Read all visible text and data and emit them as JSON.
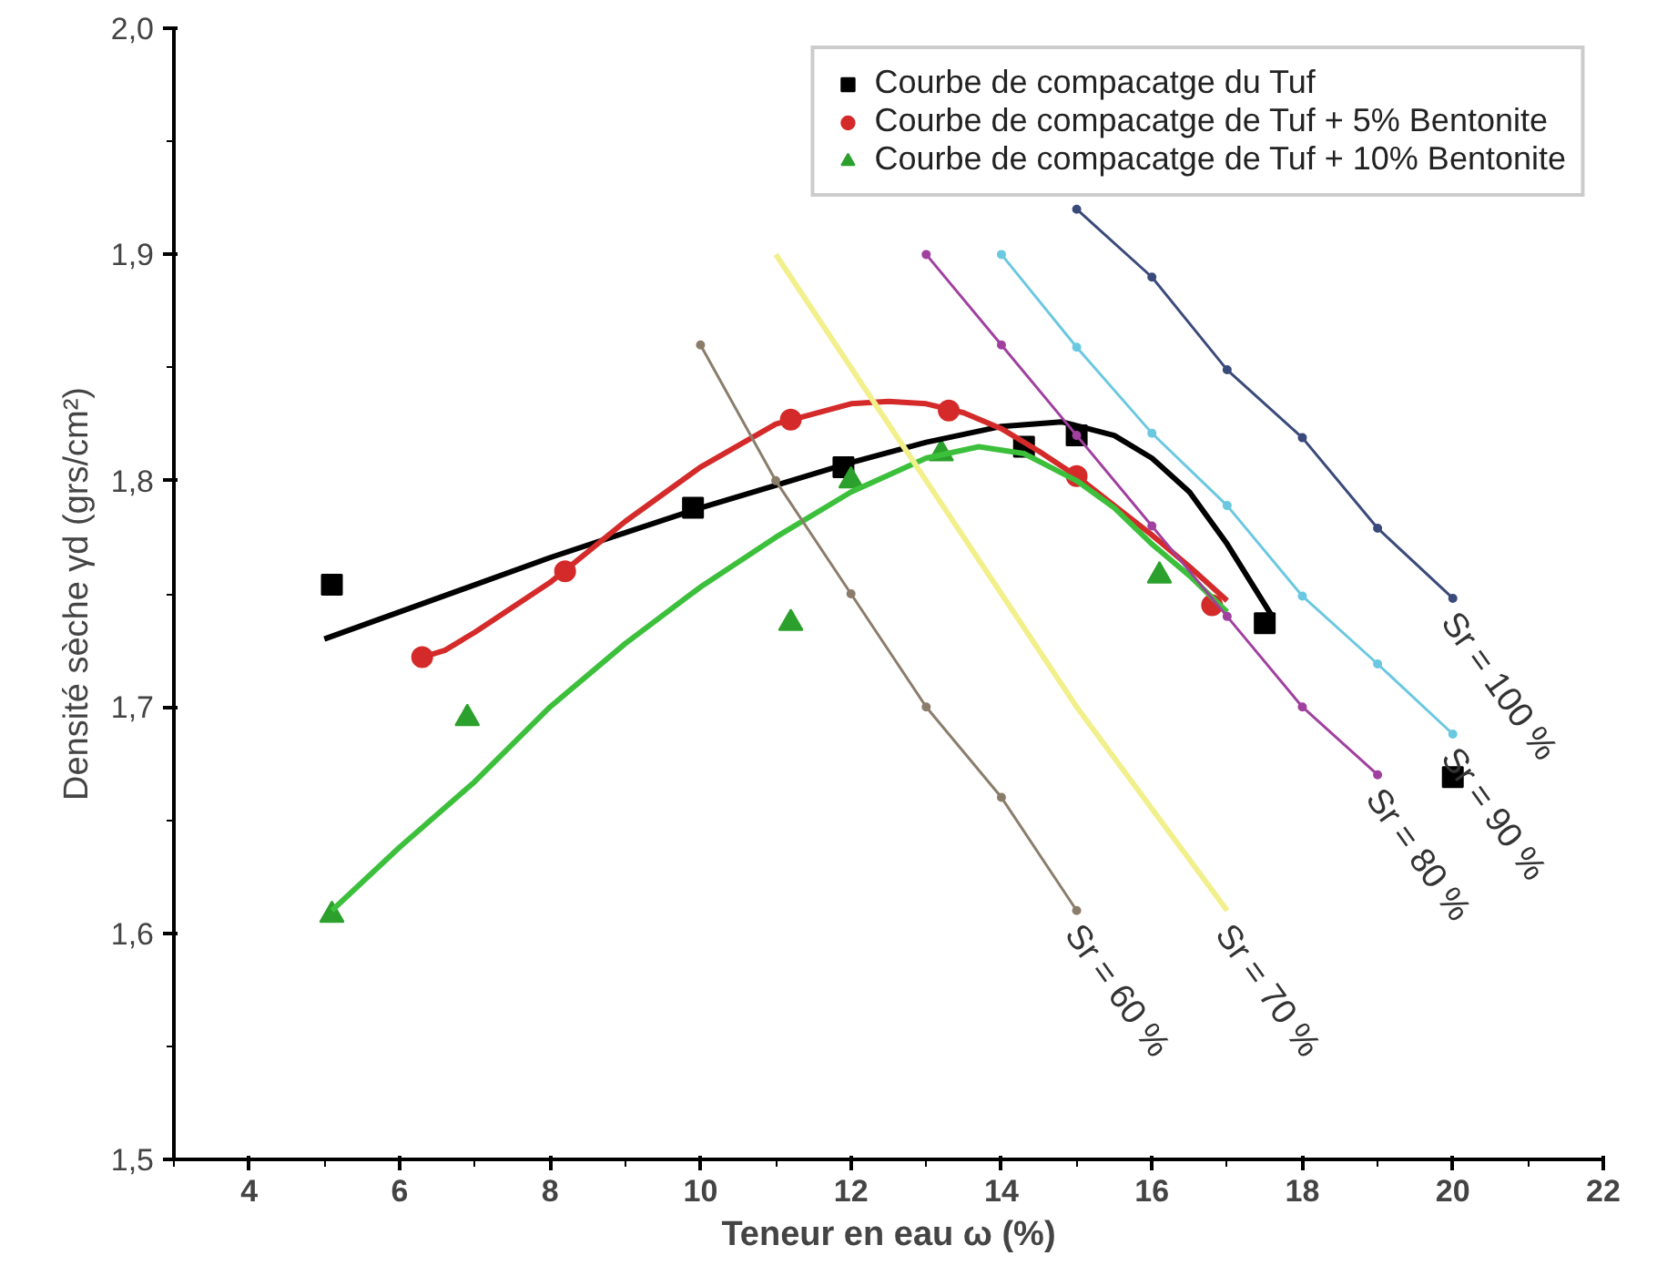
{
  "chart_data": {
    "type": "scatter",
    "xlabel": "Teneur en eau ω (%)",
    "ylabel": "Densité sèche γd (grs/cm²)",
    "xlim": [
      3,
      22
    ],
    "xticks": [
      4,
      6,
      8,
      10,
      12,
      14,
      16,
      18,
      20,
      22
    ],
    "ylim": [
      1.5,
      2.0
    ],
    "yticks": [
      {
        "value": 1.5,
        "label": "1,5"
      },
      {
        "value": 1.6,
        "label": "1,6"
      },
      {
        "value": 1.7,
        "label": "1,7"
      },
      {
        "value": 1.8,
        "label": "1,8"
      },
      {
        "value": 1.9,
        "label": "1,9"
      },
      {
        "value": 2.0,
        "label": "2,0"
      }
    ],
    "grid": false,
    "legend": "top right",
    "series": [
      {
        "name": "Courbe de compacatge du Tuf",
        "marker": "square",
        "color": "#000000",
        "x": [
          5.1,
          9.9,
          11.9,
          14.3,
          15.0,
          17.5,
          20.0
        ],
        "values": [
          1.754,
          1.788,
          1.806,
          1.815,
          1.82,
          1.737,
          1.669
        ]
      },
      {
        "name": "Courbe de compacatge de Tuf + 5% Bentonite",
        "marker": "circle",
        "color": "#d42a2a",
        "x": [
          6.3,
          8.2,
          11.2,
          13.3,
          15.0,
          16.8
        ],
        "values": [
          1.722,
          1.76,
          1.827,
          1.831,
          1.802,
          1.745
        ]
      },
      {
        "name": "Courbe de compacatge de Tuf + 10% Bentonite",
        "marker": "triangle",
        "color": "#2ca02c",
        "x": [
          5.1,
          6.9,
          11.2,
          12.0,
          13.2,
          16.1
        ],
        "values": [
          1.608,
          1.695,
          1.737,
          1.8,
          1.812,
          1.758
        ]
      },
      {
        "type": "line",
        "marker": "none",
        "color": "#000000",
        "x": [
          5,
          6,
          7,
          8,
          9,
          10,
          11,
          12,
          13,
          14,
          14.8,
          15.5,
          16,
          16.5,
          17,
          17.6
        ],
        "values": [
          1.73,
          1.742,
          1.754,
          1.766,
          1.777,
          1.788,
          1.798,
          1.808,
          1.817,
          1.824,
          1.826,
          1.82,
          1.81,
          1.795,
          1.772,
          1.74
        ]
      },
      {
        "type": "line",
        "marker": "none",
        "color": "#d42a2a",
        "x": [
          6.3,
          6.6,
          7,
          8,
          9,
          10,
          11,
          12,
          12.5,
          13,
          13.5,
          14,
          14.5,
          15,
          15.5,
          16,
          16.5,
          17
        ],
        "values": [
          1.722,
          1.725,
          1.733,
          1.755,
          1.782,
          1.806,
          1.825,
          1.834,
          1.835,
          1.834,
          1.83,
          1.823,
          1.813,
          1.802,
          1.789,
          1.776,
          1.762,
          1.747
        ]
      },
      {
        "type": "line",
        "marker": "none",
        "color": "#3cc03c",
        "x": [
          5.1,
          6,
          7,
          8,
          9,
          10,
          11,
          12,
          13,
          13.7,
          14.3,
          15,
          15.5,
          16,
          16.5,
          17
        ],
        "values": [
          1.61,
          1.638,
          1.667,
          1.7,
          1.728,
          1.753,
          1.775,
          1.795,
          1.81,
          1.815,
          1.812,
          1.8,
          1.788,
          1.772,
          1.758,
          1.742
        ]
      },
      {
        "type": "line",
        "marker": "circle",
        "color": "#8b7d6b",
        "x": [
          10,
          11,
          12,
          13,
          14,
          15
        ],
        "values": [
          1.86,
          1.8,
          1.75,
          1.7,
          1.66,
          1.61
        ]
      },
      {
        "type": "line",
        "marker": "none",
        "color": "#f2f08c",
        "x": [
          11,
          12,
          13,
          14,
          15,
          16,
          17
        ],
        "values": [
          1.9,
          1.85,
          1.8,
          1.75,
          1.7,
          1.655,
          1.61
        ]
      },
      {
        "type": "line",
        "marker": "circle",
        "color": "#a0409f",
        "x": [
          13,
          14,
          15,
          16,
          17,
          18,
          19
        ],
        "values": [
          1.9,
          1.86,
          1.82,
          1.78,
          1.74,
          1.7,
          1.67
        ]
      },
      {
        "type": "line",
        "marker": "circle",
        "color": "#6ac8e0",
        "x": [
          14,
          15,
          16,
          17,
          18,
          19,
          20
        ],
        "values": [
          1.9,
          1.859,
          1.821,
          1.789,
          1.749,
          1.719,
          1.688
        ]
      },
      {
        "type": "line",
        "marker": "circle",
        "color": "#3a4a7a",
        "x": [
          15,
          16,
          17,
          18,
          19,
          20
        ],
        "values": [
          1.92,
          1.89,
          1.849,
          1.819,
          1.779,
          1.748
        ]
      }
    ],
    "annotations": [
      {
        "text": "Sr = 60 %",
        "x": 15,
        "y": 1.61
      },
      {
        "text": "Sr = 70 %",
        "x": 17,
        "y": 1.61
      },
      {
        "text": "Sr = 80 %",
        "x": 19,
        "y": 1.67
      },
      {
        "text": "Sr = 90 %",
        "x": 20,
        "y": 1.688
      },
      {
        "text": "Sr = 100 %",
        "x": 20,
        "y": 1.748
      }
    ]
  }
}
